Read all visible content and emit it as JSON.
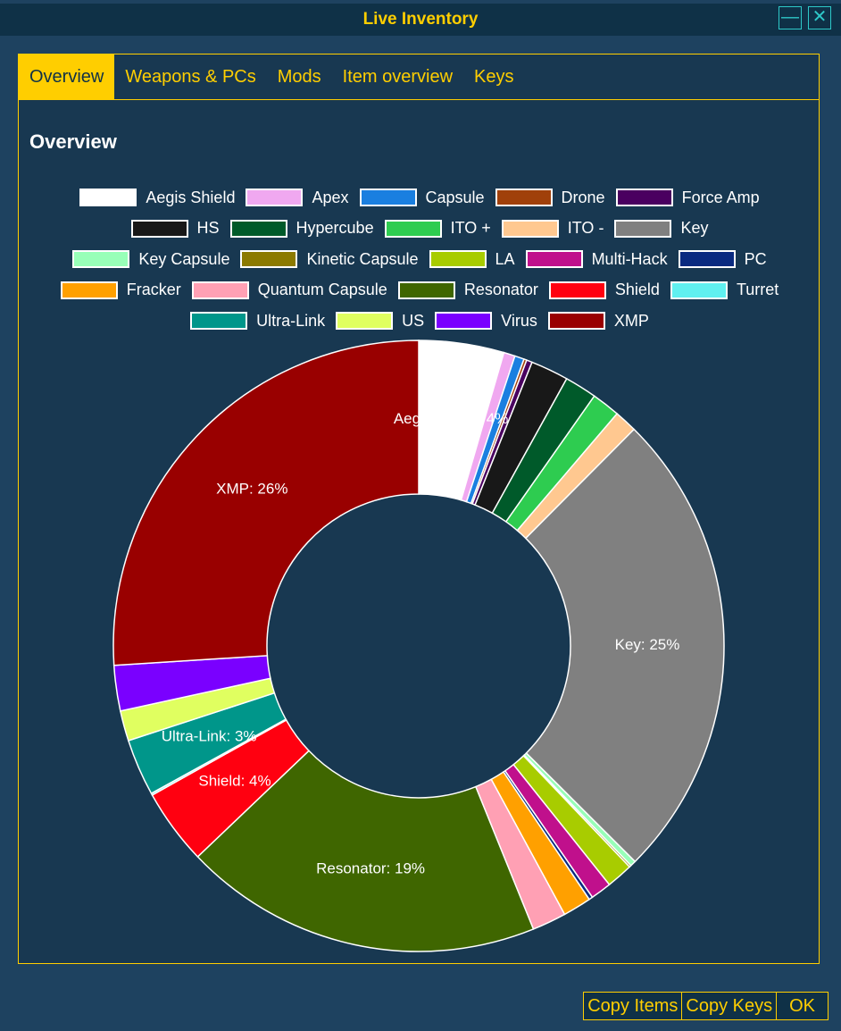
{
  "window": {
    "title": "Live Inventory"
  },
  "tabs": [
    "Overview",
    "Weapons & PCs",
    "Mods",
    "Item overview",
    "Keys"
  ],
  "buttons": [
    "Copy Items",
    "Copy Keys",
    "OK"
  ],
  "chart_data": {
    "type": "pie",
    "title": "Overview",
    "categories": [
      "Aegis Shield",
      "Apex",
      "Capsule",
      "Drone",
      "Force Amp",
      "HS",
      "Hypercube",
      "ITO +",
      "ITO -",
      "Key",
      "Key Capsule",
      "Kinetic Capsule",
      "LA",
      "Multi-Hack",
      "PC",
      "Fracker",
      "Quantum Capsule",
      "Resonator",
      "Shield",
      "Turret",
      "Ultra-Link",
      "US",
      "Virus",
      "XMP"
    ],
    "values": [
      4.5,
      0.6,
      0.5,
      0.15,
      0.3,
      2,
      1.7,
      1.5,
      1.2,
      25,
      0.3,
      0.1,
      1.4,
      1.1,
      0.2,
      1.5,
      1.8,
      19,
      4,
      0.1,
      3,
      1.6,
      2.4,
      26
    ],
    "value_labels": [
      "Aegis Shield: 4%",
      null,
      null,
      null,
      null,
      null,
      null,
      null,
      null,
      "Key: 25%",
      null,
      null,
      null,
      null,
      null,
      null,
      null,
      "Resonator: 19%",
      "Shield: 4%",
      null,
      "Ultra-Link: 3%",
      null,
      null,
      "XMP: 26%"
    ],
    "colors": [
      "#ffffff",
      "#f0a8f0",
      "#1a7fe0",
      "#a0400a",
      "#4a0060",
      "#181818",
      "#005a2a",
      "#2ecc50",
      "#ffc890",
      "#808080",
      "#98ffb8",
      "#8c7a00",
      "#a8cc00",
      "#c0108c",
      "#0a2a80",
      "#ffa000",
      "#ffa0b4",
      "#3f6600",
      "#ff0010",
      "#60f0f0",
      "#00968a",
      "#e0ff60",
      "#7a00ff",
      "#990000"
    ]
  }
}
